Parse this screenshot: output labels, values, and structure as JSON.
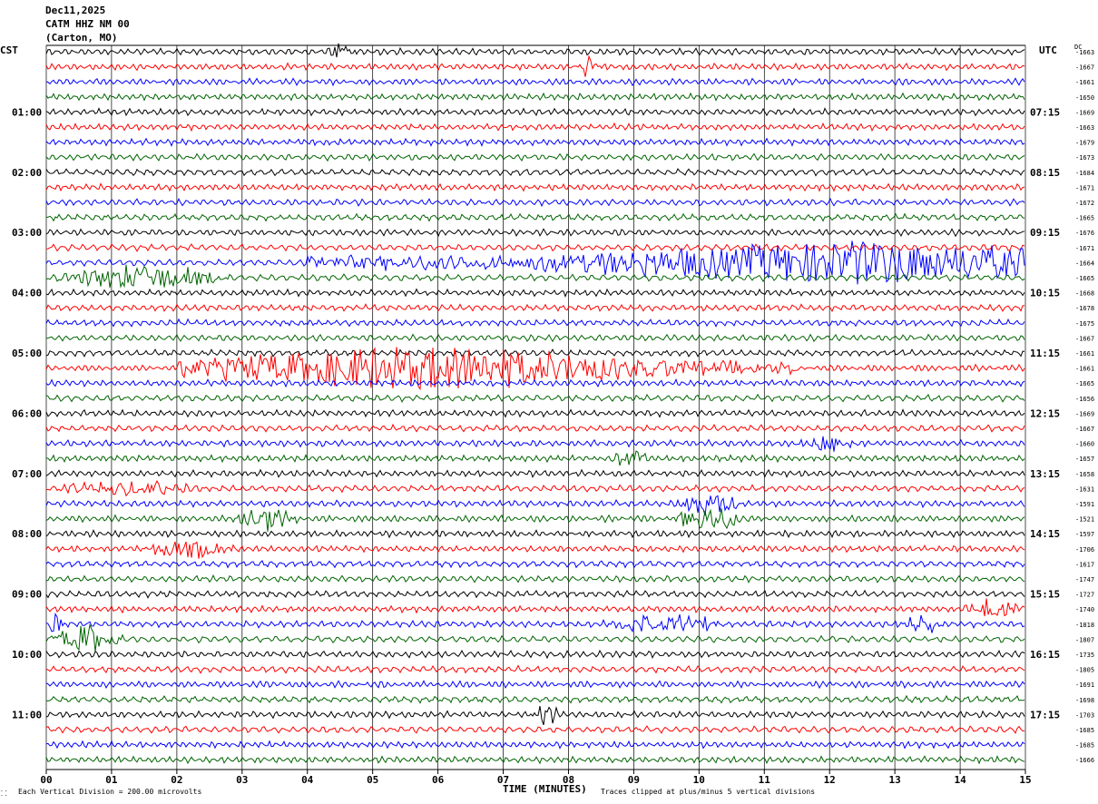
{
  "header": {
    "date": "Dec11,2025",
    "station": "CATM HHZ NM 00",
    "location": "(Carton, MO)"
  },
  "left_zone": "CST",
  "right_zone": "UTC",
  "dc_label": "DC",
  "footer": {
    "scale_note": "Each Vertical Division =  200.00 microvolts",
    "x_title": "TIME (MINUTES)",
    "clip_note": "Traces clipped at plus/minus 5 vertical divisions",
    "corner_mark": "⸬"
  },
  "chart_data": {
    "type": "line",
    "xlabel": "TIME (MINUTES)",
    "xlim": [
      0,
      15
    ],
    "x_ticks": [
      "00",
      "01",
      "02",
      "03",
      "04",
      "05",
      "06",
      "07",
      "08",
      "09",
      "10",
      "11",
      "12",
      "13",
      "14",
      "15"
    ],
    "trace_colors": [
      "#000000",
      "#ff0000",
      "#0000ff",
      "#006400"
    ],
    "lines_per_hour": 4,
    "minutes_per_line": 15,
    "left_hour_labels": [
      "01:00",
      "02:00",
      "03:00",
      "04:00",
      "05:00",
      "06:00",
      "07:00",
      "08:00",
      "09:00",
      "10:00",
      "11:00"
    ],
    "right_hour_labels": [
      "07:15",
      "08:15",
      "09:15",
      "10:15",
      "11:15",
      "12:15",
      "13:15",
      "14:15",
      "15:15",
      "16:15",
      "17:15"
    ],
    "dc_offsets": [
      -1663,
      -1667,
      -1661,
      -1650,
      -1669,
      -1663,
      -1679,
      -1673,
      -1684,
      -1671,
      -1672,
      -1665,
      -1676,
      -1671,
      -1664,
      -1665,
      -1668,
      -1678,
      -1675,
      -1667,
      -1661,
      -1661,
      -1665,
      -1656,
      -1669,
      -1667,
      -1660,
      -1657,
      -1658,
      -1631,
      -1591,
      -1521,
      -1597,
      -1706,
      -1617,
      -1747,
      -1727,
      -1740,
      -1818,
      -1807,
      -1735,
      -1805,
      -1691,
      -1698,
      -1703,
      -1685,
      -1685,
      -1666
    ],
    "events": [
      {
        "trace": 0,
        "start": 4.3,
        "end": 4.8,
        "amp": 2.2
      },
      {
        "trace": 1,
        "start": 8.1,
        "end": 8.5,
        "amp": 2.0
      },
      {
        "trace": 14,
        "start": 4.0,
        "end": 15.0,
        "amp": 4.8,
        "peak": 12.3
      },
      {
        "trace": 15,
        "start": 0.0,
        "end": 3.0,
        "amp": 2.4
      },
      {
        "trace": 21,
        "start": 2.0,
        "end": 11.5,
        "amp": 4.8,
        "peak": 5.8
      },
      {
        "trace": 26,
        "start": 11.5,
        "end": 12.5,
        "amp": 1.6
      },
      {
        "trace": 27,
        "start": 8.6,
        "end": 9.3,
        "amp": 1.6
      },
      {
        "trace": 29,
        "start": 0.0,
        "end": 2.5,
        "amp": 1.5
      },
      {
        "trace": 30,
        "start": 9.5,
        "end": 10.8,
        "amp": 2.0
      },
      {
        "trace": 31,
        "start": 2.8,
        "end": 3.9,
        "amp": 2.6
      },
      {
        "trace": 31,
        "start": 9.5,
        "end": 10.8,
        "amp": 2.6
      },
      {
        "trace": 33,
        "start": 1.4,
        "end": 3.0,
        "amp": 2.0
      },
      {
        "trace": 37,
        "start": 14.0,
        "end": 15.0,
        "amp": 2.2
      },
      {
        "trace": 38,
        "start": 8.5,
        "end": 10.5,
        "amp": 2.2
      },
      {
        "trace": 38,
        "start": 13.0,
        "end": 13.8,
        "amp": 1.8
      },
      {
        "trace": 38,
        "start": 0.0,
        "end": 0.3,
        "amp": 2.0
      },
      {
        "trace": 39,
        "start": 0.0,
        "end": 1.2,
        "amp": 2.8
      },
      {
        "trace": 44,
        "start": 7.4,
        "end": 7.9,
        "amp": 2.0
      }
    ]
  }
}
